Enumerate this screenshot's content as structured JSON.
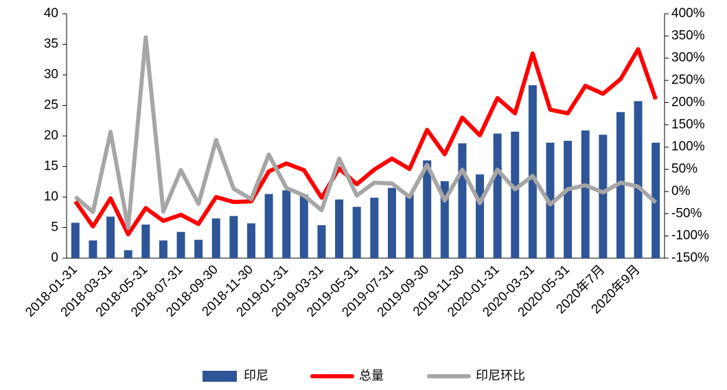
{
  "chart_data": {
    "type": "bar_line",
    "categories": [
      "2018-01-31",
      null,
      "2018-03-31",
      null,
      "2018-05-31",
      null,
      "2018-07-31",
      null,
      "2018-09-30",
      null,
      "2018-11-30",
      null,
      "2019-01-31",
      null,
      "2019-03-31",
      null,
      "2019-05-31",
      null,
      "2019-07-31",
      null,
      "2019-09-30",
      null,
      "2019-11-30",
      null,
      "2020-01-31",
      null,
      "2020-03-31",
      null,
      "2020-05-31",
      null,
      "2020年7月",
      null,
      "2020年9月",
      null
    ],
    "series": [
      {
        "name": "印尼",
        "type": "bar",
        "color": "#2e5597",
        "values": [
          5.8,
          2.9,
          6.8,
          1.3,
          5.5,
          2.9,
          4.3,
          3.0,
          6.5,
          6.9,
          5.7,
          10.5,
          11.1,
          10.4,
          5.4,
          9.6,
          8.4,
          9.9,
          11.5,
          10.5,
          16.0,
          12.6,
          18.8,
          13.7,
          20.4,
          20.7,
          28.3,
          18.9,
          19.2,
          20.9,
          20.2,
          23.9,
          25.7,
          18.9
        ]
      },
      {
        "name": "总量",
        "type": "line",
        "color": "#ff0000",
        "values": [
          9.3,
          5.2,
          9.8,
          3.9,
          8.2,
          6.1,
          7.1,
          5.6,
          10.0,
          9.2,
          9.3,
          14.2,
          15.5,
          14.4,
          9.9,
          14.7,
          12.1,
          14.5,
          16.3,
          14.6,
          21.0,
          17.0,
          23.0,
          20.1,
          26.2,
          23.7,
          33.5,
          24.3,
          23.7,
          28.2,
          26.9,
          29.3,
          34.2,
          26.0
        ]
      },
      {
        "name": "印尼环比",
        "type": "line",
        "axis": "y2",
        "color": "#a6a6a6",
        "values": [
          -12,
          -46,
          134,
          -82,
          347,
          -45,
          48,
          -28,
          116,
          6,
          -17,
          83,
          8,
          -9,
          -42,
          74,
          -9,
          20,
          18,
          -12,
          60,
          -20,
          49,
          -26,
          49,
          5,
          35,
          -29,
          5,
          14,
          -2,
          20,
          11,
          -25
        ]
      }
    ],
    "ylim": [
      0,
      40
    ],
    "yticks": [
      0,
      5,
      10,
      15,
      20,
      25,
      30,
      35,
      40
    ],
    "y2lim": [
      -150,
      400
    ],
    "y2ticks": [
      {
        "value": -150,
        "label": "-150%"
      },
      {
        "value": -100,
        "label": "-100%"
      },
      {
        "value": -50,
        "label": "-50%"
      },
      {
        "value": 0,
        "label": "0%"
      },
      {
        "value": 50,
        "label": "50%"
      },
      {
        "value": 100,
        "label": "100%"
      },
      {
        "value": 150,
        "label": "150%"
      },
      {
        "value": 200,
        "label": "200%"
      },
      {
        "value": 250,
        "label": "250%"
      },
      {
        "value": 300,
        "label": "300%"
      },
      {
        "value": 350,
        "label": "350%"
      },
      {
        "value": 400,
        "label": "400%"
      }
    ],
    "legend": "bottom"
  }
}
